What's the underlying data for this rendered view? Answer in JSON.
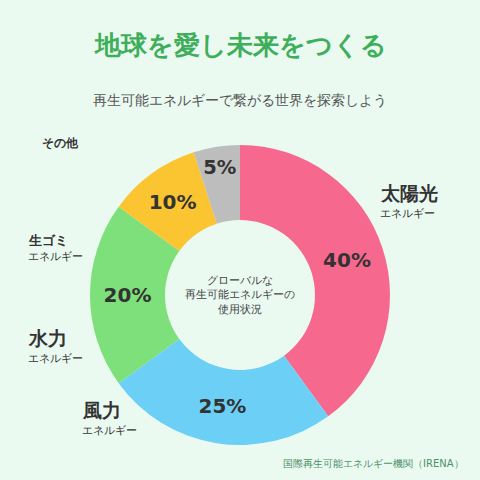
{
  "chart_data": {
    "type": "pie",
    "title": "地球を愛し未来をつくる",
    "subtitle": "再生可能エネルギーで繋がる世界を探索しよう",
    "categories": [
      "太陽光\nエネルギー",
      "風力\nエネルギー",
      "水力\nエネルギー",
      "生ゴミ\nエネルギー",
      "その他"
    ],
    "values": [
      40,
      25,
      20,
      10,
      5
    ],
    "value_labels": [
      "40%",
      "25%",
      "20%",
      "10%",
      "5%"
    ],
    "colors": [
      "#f7688f",
      "#6ccff6",
      "#7ee07a",
      "#fbc531",
      "#bdbdbd"
    ],
    "data_labels": true,
    "annotations": [
      "グローバルな\n再生可能エネルギーの\n使用状況",
      "国際再生可能エネルギー機関（IRENA）"
    ]
  }
}
